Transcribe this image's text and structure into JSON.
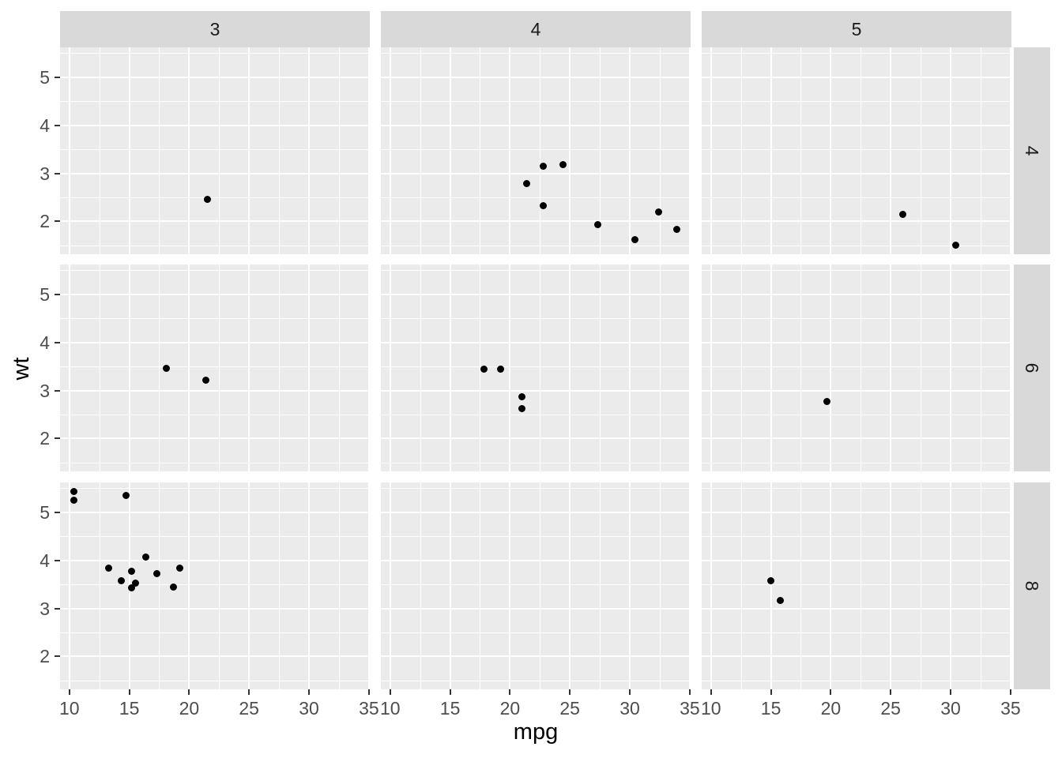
{
  "chart_data": {
    "type": "scatter",
    "title": "",
    "xlabel": "mpg",
    "ylabel": "wt",
    "grid": true,
    "legend": "none",
    "x": {
      "title": "mpg",
      "domain": [
        9.225,
        35.075
      ],
      "major_ticks": [
        10,
        15,
        20,
        25,
        30,
        35
      ],
      "minor_ticks": [
        12.5,
        17.5,
        22.5,
        27.5,
        32.5
      ]
    },
    "y": {
      "title": "wt",
      "domain": [
        1.3175,
        5.6195
      ],
      "major_ticks": [
        2,
        3,
        4,
        5
      ],
      "minor_ticks": [
        1.5,
        2.5,
        3.5,
        4.5,
        5.5
      ]
    },
    "facets": {
      "col_values": [
        "3",
        "4",
        "5"
      ],
      "row_values": [
        "4",
        "6",
        "8"
      ],
      "panels": [
        {
          "col": "3",
          "row": "4",
          "points": [
            [
              21.5,
              2.465
            ]
          ]
        },
        {
          "col": "4",
          "row": "4",
          "points": [
            [
              21.4,
              2.78
            ],
            [
              22.8,
              3.15
            ],
            [
              24.4,
              3.19
            ],
            [
              22.8,
              2.32
            ],
            [
              27.3,
              1.935
            ],
            [
              30.4,
              1.615
            ],
            [
              32.4,
              2.2
            ],
            [
              33.9,
              1.835
            ]
          ]
        },
        {
          "col": "5",
          "row": "4",
          "points": [
            [
              26,
              2.14
            ],
            [
              30.4,
              1.513
            ]
          ]
        },
        {
          "col": "3",
          "row": "6",
          "points": [
            [
              18.1,
              3.46
            ],
            [
              21.4,
              3.215
            ]
          ]
        },
        {
          "col": "4",
          "row": "6",
          "points": [
            [
              17.8,
              3.44
            ],
            [
              19.2,
              3.44
            ],
            [
              21,
              2.875
            ],
            [
              21,
              2.62
            ]
          ]
        },
        {
          "col": "5",
          "row": "6",
          "points": [
            [
              19.7,
              2.77
            ]
          ]
        },
        {
          "col": "3",
          "row": "8",
          "points": [
            [
              10.4,
              5.424
            ],
            [
              10.4,
              5.25
            ],
            [
              14.7,
              5.345
            ],
            [
              13.3,
              3.84
            ],
            [
              14.3,
              3.57
            ],
            [
              15.2,
              3.78
            ],
            [
              15.5,
              3.52
            ],
            [
              15.2,
              3.435
            ],
            [
              16.4,
              4.07
            ],
            [
              17.3,
              3.73
            ],
            [
              18.7,
              3.44
            ],
            [
              19.2,
              3.845
            ]
          ]
        },
        {
          "col": "4",
          "row": "8",
          "points": []
        },
        {
          "col": "5",
          "row": "8",
          "points": [
            [
              15,
              3.57
            ],
            [
              15.8,
              3.17
            ]
          ]
        }
      ]
    }
  },
  "colors": {
    "plot_background": "#FFFFFF",
    "panel_background": "#EBEBEB",
    "strip_background": "#D9D9D9",
    "gridline": "#FFFFFF",
    "point": "#000000",
    "axis_text": "#4D4D4D",
    "strip_text": "#1A1A1A",
    "axis_title": "#000000",
    "tick_mark": "#333333"
  }
}
